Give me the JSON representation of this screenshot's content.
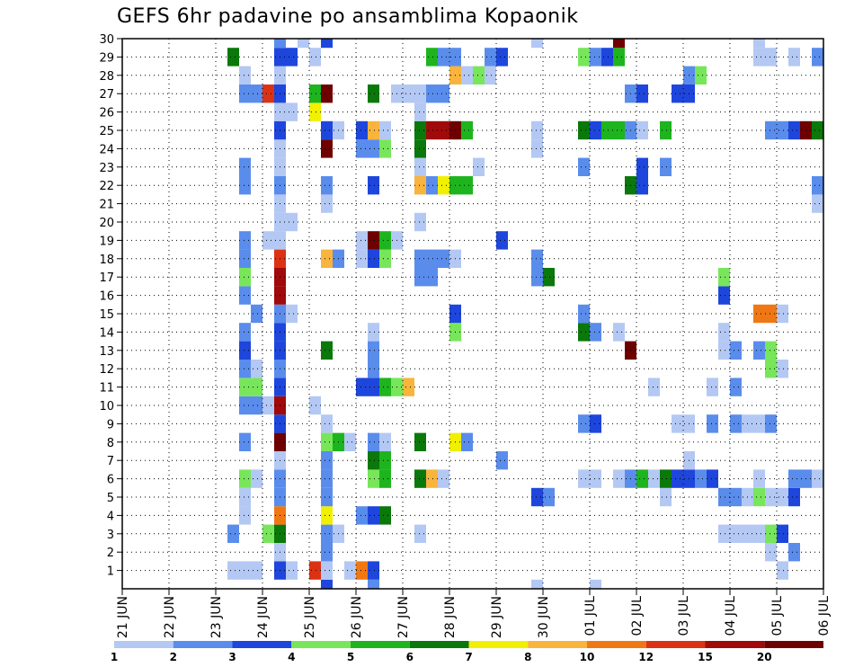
{
  "title": "GEFS 6hr padavine po ansamblima Kopaonik",
  "chart_data": {
    "type": "heatmap",
    "title": "GEFS 6hr padavine po ansamblima Kopaonik",
    "xlabel": "",
    "ylabel": "",
    "x_ticks": [
      "21 JUN",
      "22 JUN",
      "23 JUN",
      "24 JUN",
      "25 JUN",
      "26 JUN",
      "27 JUN",
      "28 JUN",
      "29 JUN",
      "30 JUN",
      "01 JUL",
      "02 JUL",
      "03 JUL",
      "04 JUL",
      "05 JUL",
      "06 JUL"
    ],
    "y_ticks": [
      1,
      2,
      3,
      4,
      5,
      6,
      7,
      8,
      9,
      10,
      11,
      12,
      13,
      14,
      15,
      16,
      17,
      18,
      19,
      20,
      21,
      22,
      23,
      24,
      25,
      26,
      27,
      28,
      29,
      30
    ],
    "ylim": [
      0,
      30
    ],
    "grid": true,
    "legend_placement": "bottom",
    "legend": {
      "levels": [
        1,
        2,
        3,
        4,
        5,
        6,
        7,
        8,
        10,
        12,
        15,
        20
      ],
      "labels": [
        "1",
        "2",
        "3",
        "4",
        "5",
        "6",
        "7",
        "8",
        "10",
        "12",
        "15",
        "20"
      ],
      "colors": [
        "#b4c8f4",
        "#5a8cec",
        "#1e46dc",
        "#78e65a",
        "#1eb41e",
        "#0a780a",
        "#f0f000",
        "#f8b43c",
        "#f07814",
        "#dc3214",
        "#a00a0a",
        "#6e0000"
      ]
    },
    "cells_note": "each cell: [x_step, member, class]; x_step counted in 6h steps from 21 JUN 00Z, class indexes legend.colors",
    "cells": [
      [
        9,
        29,
        5
      ],
      [
        9,
        1,
        0
      ],
      [
        9,
        3,
        1
      ],
      [
        10,
        1,
        0
      ],
      [
        10,
        4,
        0
      ],
      [
        10,
        5,
        0
      ],
      [
        10,
        6,
        3
      ],
      [
        10,
        8,
        1
      ],
      [
        10,
        10,
        1
      ],
      [
        10,
        11,
        3
      ],
      [
        10,
        12,
        1
      ],
      [
        10,
        13,
        2
      ],
      [
        10,
        14,
        1
      ],
      [
        10,
        16,
        1
      ],
      [
        10,
        17,
        3
      ],
      [
        10,
        18,
        1
      ],
      [
        10,
        19,
        1
      ],
      [
        10,
        22,
        1
      ],
      [
        10,
        23,
        1
      ],
      [
        10,
        27,
        1
      ],
      [
        10,
        28,
        0
      ],
      [
        11,
        1,
        0
      ],
      [
        11,
        6,
        0
      ],
      [
        11,
        10,
        1
      ],
      [
        11,
        11,
        3
      ],
      [
        11,
        12,
        0
      ],
      [
        11,
        15,
        1
      ],
      [
        11,
        27,
        1
      ],
      [
        12,
        10,
        0
      ],
      [
        12,
        19,
        0
      ],
      [
        12,
        3,
        3
      ],
      [
        12,
        27,
        9
      ],
      [
        13,
        1,
        2
      ],
      [
        13,
        2,
        0
      ],
      [
        13,
        3,
        5
      ],
      [
        13,
        4,
        8
      ],
      [
        13,
        5,
        1
      ],
      [
        13,
        6,
        1
      ],
      [
        13,
        7,
        0
      ],
      [
        13,
        8,
        11
      ],
      [
        13,
        9,
        2
      ],
      [
        13,
        10,
        10
      ],
      [
        13,
        11,
        2
      ],
      [
        13,
        12,
        1
      ],
      [
        13,
        13,
        2
      ],
      [
        13,
        14,
        2
      ],
      [
        13,
        15,
        1
      ],
      [
        13,
        16,
        10
      ],
      [
        13,
        17,
        10
      ],
      [
        13,
        18,
        9
      ],
      [
        13,
        19,
        0
      ],
      [
        13,
        20,
        0
      ],
      [
        13,
        21,
        0
      ],
      [
        13,
        22,
        1
      ],
      [
        13,
        23,
        0
      ],
      [
        13,
        24,
        0
      ],
      [
        13,
        25,
        2
      ],
      [
        13,
        26,
        0
      ],
      [
        13,
        27,
        2
      ],
      [
        13,
        28,
        0
      ],
      [
        13,
        29,
        2
      ],
      [
        13,
        30,
        1
      ],
      [
        14,
        1,
        0
      ],
      [
        14,
        15,
        0
      ],
      [
        14,
        20,
        0
      ],
      [
        14,
        26,
        0
      ],
      [
        14,
        29,
        2
      ],
      [
        15,
        30,
        0
      ],
      [
        16,
        1,
        9
      ],
      [
        16,
        10,
        0
      ],
      [
        16,
        26,
        6
      ],
      [
        16,
        27,
        4
      ],
      [
        16,
        29,
        0
      ],
      [
        17,
        0,
        2
      ],
      [
        17,
        1,
        0
      ],
      [
        17,
        2,
        1
      ],
      [
        17,
        3,
        1
      ],
      [
        17,
        4,
        6
      ],
      [
        17,
        5,
        1
      ],
      [
        17,
        6,
        1
      ],
      [
        17,
        7,
        1
      ],
      [
        17,
        8,
        3
      ],
      [
        17,
        9,
        0
      ],
      [
        17,
        13,
        5
      ],
      [
        17,
        18,
        7
      ],
      [
        17,
        21,
        0
      ],
      [
        17,
        22,
        1
      ],
      [
        17,
        24,
        11
      ],
      [
        17,
        25,
        2
      ],
      [
        17,
        27,
        11
      ],
      [
        17,
        30,
        2
      ],
      [
        18,
        3,
        0
      ],
      [
        18,
        8,
        4
      ],
      [
        18,
        18,
        1
      ],
      [
        18,
        25,
        0
      ],
      [
        19,
        1,
        0
      ],
      [
        19,
        8,
        0
      ],
      [
        20,
        1,
        8
      ],
      [
        20,
        4,
        1
      ],
      [
        20,
        11,
        2
      ],
      [
        20,
        18,
        0
      ],
      [
        20,
        19,
        0
      ],
      [
        20,
        24,
        1
      ],
      [
        20,
        25,
        2
      ],
      [
        21,
        0,
        1
      ],
      [
        21,
        1,
        2
      ],
      [
        21,
        4,
        2
      ],
      [
        21,
        6,
        3
      ],
      [
        21,
        7,
        5
      ],
      [
        21,
        8,
        1
      ],
      [
        21,
        11,
        2
      ],
      [
        21,
        12,
        1
      ],
      [
        21,
        13,
        1
      ],
      [
        21,
        14,
        0
      ],
      [
        21,
        18,
        2
      ],
      [
        21,
        19,
        11
      ],
      [
        21,
        22,
        2
      ],
      [
        21,
        24,
        1
      ],
      [
        21,
        25,
        7
      ],
      [
        21,
        27,
        5
      ],
      [
        22,
        4,
        5
      ],
      [
        22,
        6,
        4
      ],
      [
        22,
        7,
        4
      ],
      [
        22,
        8,
        0
      ],
      [
        22,
        11,
        4
      ],
      [
        22,
        18,
        3
      ],
      [
        22,
        19,
        4
      ],
      [
        22,
        24,
        3
      ],
      [
        22,
        25,
        0
      ],
      [
        23,
        11,
        3
      ],
      [
        23,
        19,
        0
      ],
      [
        23,
        27,
        0
      ],
      [
        24,
        11,
        7
      ],
      [
        24,
        27,
        0
      ],
      [
        25,
        3,
        0
      ],
      [
        25,
        6,
        5
      ],
      [
        25,
        8,
        5
      ],
      [
        25,
        17,
        1
      ],
      [
        25,
        18,
        1
      ],
      [
        25,
        20,
        0
      ],
      [
        25,
        22,
        7
      ],
      [
        25,
        23,
        0
      ],
      [
        25,
        24,
        5
      ],
      [
        25,
        25,
        5
      ],
      [
        25,
        26,
        0
      ],
      [
        25,
        27,
        0
      ],
      [
        26,
        6,
        7
      ],
      [
        26,
        17,
        1
      ],
      [
        26,
        18,
        1
      ],
      [
        26,
        22,
        1
      ],
      [
        26,
        25,
        10
      ],
      [
        26,
        27,
        1
      ],
      [
        26,
        29,
        4
      ],
      [
        27,
        6,
        0
      ],
      [
        27,
        18,
        1
      ],
      [
        27,
        22,
        6
      ],
      [
        27,
        25,
        10
      ],
      [
        27,
        27,
        1
      ],
      [
        27,
        29,
        1
      ],
      [
        28,
        8,
        6
      ],
      [
        28,
        14,
        3
      ],
      [
        28,
        15,
        2
      ],
      [
        28,
        18,
        0
      ],
      [
        28,
        22,
        4
      ],
      [
        28,
        25,
        11
      ],
      [
        28,
        28,
        7
      ],
      [
        28,
        29,
        1
      ],
      [
        29,
        8,
        1
      ],
      [
        29,
        22,
        4
      ],
      [
        29,
        25,
        4
      ],
      [
        29,
        28,
        0
      ],
      [
        30,
        23,
        0
      ],
      [
        30,
        28,
        3
      ],
      [
        31,
        29,
        1
      ],
      [
        31,
        28,
        0
      ],
      [
        32,
        7,
        1
      ],
      [
        32,
        19,
        2
      ],
      [
        32,
        29,
        2
      ],
      [
        35,
        0,
        0
      ],
      [
        35,
        5,
        2
      ],
      [
        35,
        17,
        1
      ],
      [
        35,
        18,
        1
      ],
      [
        35,
        24,
        0
      ],
      [
        35,
        25,
        0
      ],
      [
        35,
        30,
        0
      ],
      [
        36,
        5,
        1
      ],
      [
        36,
        17,
        5
      ],
      [
        39,
        6,
        0
      ],
      [
        39,
        9,
        1
      ],
      [
        39,
        14,
        5
      ],
      [
        39,
        15,
        1
      ],
      [
        39,
        23,
        1
      ],
      [
        39,
        25,
        5
      ],
      [
        39,
        29,
        3
      ],
      [
        40,
        0,
        0
      ],
      [
        40,
        6,
        0
      ],
      [
        40,
        9,
        2
      ],
      [
        40,
        14,
        1
      ],
      [
        40,
        25,
        2
      ],
      [
        40,
        29,
        1
      ],
      [
        41,
        25,
        4
      ],
      [
        41,
        29,
        2
      ],
      [
        42,
        6,
        0
      ],
      [
        42,
        14,
        0
      ],
      [
        42,
        25,
        4
      ],
      [
        42,
        29,
        4
      ],
      [
        42,
        30,
        11
      ],
      [
        43,
        6,
        1
      ],
      [
        43,
        13,
        11
      ],
      [
        43,
        22,
        5
      ],
      [
        43,
        25,
        1
      ],
      [
        43,
        27,
        1
      ],
      [
        44,
        6,
        4
      ],
      [
        44,
        22,
        2
      ],
      [
        44,
        23,
        2
      ],
      [
        44,
        25,
        0
      ],
      [
        44,
        27,
        2
      ],
      [
        45,
        6,
        0
      ],
      [
        45,
        11,
        0
      ],
      [
        46,
        5,
        0
      ],
      [
        46,
        6,
        5
      ],
      [
        46,
        23,
        1
      ],
      [
        46,
        25,
        4
      ],
      [
        47,
        6,
        2
      ],
      [
        47,
        9,
        0
      ],
      [
        47,
        27,
        2
      ],
      [
        48,
        6,
        2
      ],
      [
        48,
        7,
        0
      ],
      [
        48,
        9,
        0
      ],
      [
        48,
        27,
        2
      ],
      [
        48,
        28,
        1
      ],
      [
        49,
        6,
        1
      ],
      [
        49,
        28,
        3
      ],
      [
        50,
        6,
        2
      ],
      [
        50,
        9,
        1
      ],
      [
        50,
        11,
        0
      ],
      [
        51,
        3,
        0
      ],
      [
        51,
        5,
        1
      ],
      [
        51,
        13,
        0
      ],
      [
        51,
        14,
        0
      ],
      [
        51,
        16,
        2
      ],
      [
        51,
        17,
        3
      ],
      [
        52,
        3,
        0
      ],
      [
        52,
        5,
        1
      ],
      [
        52,
        9,
        1
      ],
      [
        52,
        11,
        1
      ],
      [
        52,
        13,
        1
      ],
      [
        53,
        3,
        0
      ],
      [
        53,
        5,
        0
      ],
      [
        53,
        9,
        0
      ],
      [
        54,
        3,
        0
      ],
      [
        54,
        5,
        3
      ],
      [
        54,
        6,
        0
      ],
      [
        54,
        9,
        0
      ],
      [
        54,
        13,
        1
      ],
      [
        54,
        15,
        8
      ],
      [
        54,
        29,
        0
      ],
      [
        54,
        30,
        0
      ],
      [
        55,
        2,
        0
      ],
      [
        55,
        3,
        3
      ],
      [
        55,
        5,
        0
      ],
      [
        55,
        9,
        1
      ],
      [
        55,
        12,
        3
      ],
      [
        55,
        13,
        3
      ],
      [
        55,
        15,
        8
      ],
      [
        55,
        25,
        1
      ],
      [
        55,
        29,
        0
      ],
      [
        56,
        1,
        0
      ],
      [
        56,
        3,
        2
      ],
      [
        56,
        5,
        0
      ],
      [
        56,
        12,
        0
      ],
      [
        56,
        15,
        0
      ],
      [
        56,
        25,
        1
      ],
      [
        57,
        2,
        1
      ],
      [
        57,
        5,
        2
      ],
      [
        57,
        6,
        1
      ],
      [
        57,
        25,
        2
      ],
      [
        57,
        29,
        0
      ],
      [
        58,
        6,
        1
      ],
      [
        58,
        25,
        11
      ],
      [
        59,
        6,
        0
      ],
      [
        59,
        21,
        0
      ],
      [
        59,
        22,
        1
      ],
      [
        59,
        25,
        5
      ],
      [
        59,
        29,
        1
      ]
    ]
  }
}
